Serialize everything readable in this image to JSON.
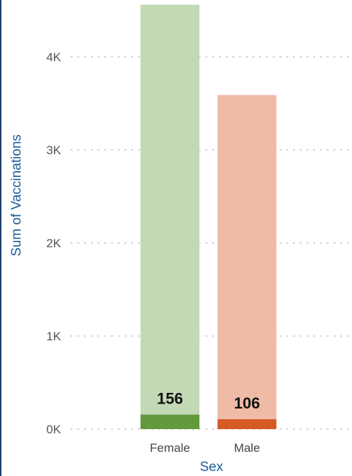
{
  "chart_data": {
    "type": "bar",
    "xlabel": "Sex",
    "ylabel": "Sum of Vaccinations",
    "categories": [
      "Female",
      "Male"
    ],
    "ylim": [
      0,
      4500
    ],
    "yticks": [
      0,
      1000,
      2000,
      3000,
      4000
    ],
    "ytick_labels": [
      "0K",
      "1K",
      "2K",
      "3K",
      "4K"
    ],
    "series": [
      {
        "values": [
          4560,
          3590
        ],
        "colors": [
          "#c3d9b5",
          "#efbba6"
        ]
      },
      {
        "values": [
          156,
          106
        ],
        "colors": [
          "#62993d",
          "#d65a24"
        ]
      }
    ],
    "data_labels": [
      "156",
      "106"
    ],
    "grid": "horizontal-dotted"
  }
}
